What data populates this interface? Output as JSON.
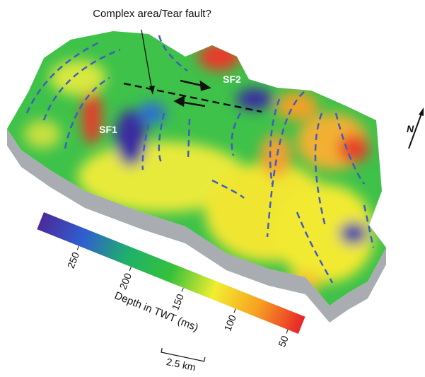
{
  "annotation": "Complex area/Tear fault?",
  "labels": {
    "sf1": "SF1",
    "sf2": "SF2"
  },
  "north": "N",
  "colorbar": {
    "title": "Depth in TWT (ms)",
    "lim": [
      290,
      40
    ],
    "ticks": [
      250,
      200,
      150,
      100,
      50
    ],
    "colors": [
      "#4b2a9a",
      "#2f5fd0",
      "#1fb06a",
      "#35c13a",
      "#f2ee30",
      "#f7a020",
      "#e8242a"
    ]
  },
  "scale_bar": "2.5 km"
}
